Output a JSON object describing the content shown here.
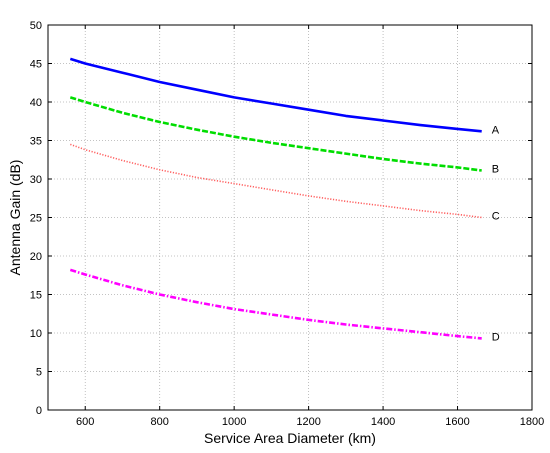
{
  "chart_data": {
    "type": "line",
    "xlabel": "Service Area Diameter (km)",
    "ylabel": "Antenna Gain (dB)",
    "xlim": [
      500,
      1800
    ],
    "ylim": [
      0,
      50
    ],
    "xticks": [
      600,
      800,
      1000,
      1200,
      1400,
      1600,
      1800
    ],
    "yticks": [
      0,
      5,
      10,
      15,
      20,
      25,
      30,
      35,
      40,
      45,
      50
    ],
    "grid": true,
    "series": [
      {
        "name": "A",
        "color": "#0000ff",
        "style": "solid",
        "x": [
          560,
          600,
          700,
          800,
          900,
          1000,
          1100,
          1200,
          1300,
          1400,
          1500,
          1600,
          1665
        ],
        "y": [
          45.6,
          45.0,
          43.8,
          42.6,
          41.6,
          40.6,
          39.8,
          39.0,
          38.2,
          37.6,
          37.0,
          36.5,
          36.2
        ]
      },
      {
        "name": "B",
        "color": "#00dd00",
        "style": "dashed",
        "x": [
          560,
          600,
          700,
          800,
          900,
          1000,
          1100,
          1200,
          1300,
          1400,
          1500,
          1600,
          1665
        ],
        "y": [
          40.6,
          40.0,
          38.6,
          37.4,
          36.4,
          35.5,
          34.7,
          34.0,
          33.3,
          32.6,
          32.0,
          31.5,
          31.1
        ]
      },
      {
        "name": "C",
        "color": "#ff6060",
        "style": "dotted",
        "x": [
          560,
          600,
          700,
          800,
          900,
          1000,
          1100,
          1200,
          1300,
          1400,
          1500,
          1600,
          1665
        ],
        "y": [
          34.5,
          33.8,
          32.4,
          31.2,
          30.2,
          29.4,
          28.6,
          27.8,
          27.1,
          26.5,
          25.9,
          25.4,
          25.0
        ]
      },
      {
        "name": "D",
        "color": "#ff00ff",
        "style": "dash-dot",
        "x": [
          560,
          600,
          700,
          800,
          900,
          1000,
          1100,
          1200,
          1300,
          1400,
          1500,
          1600,
          1665
        ],
        "y": [
          18.2,
          17.6,
          16.2,
          15.0,
          14.0,
          13.1,
          12.4,
          11.7,
          11.1,
          10.6,
          10.1,
          9.6,
          9.3
        ]
      }
    ]
  }
}
